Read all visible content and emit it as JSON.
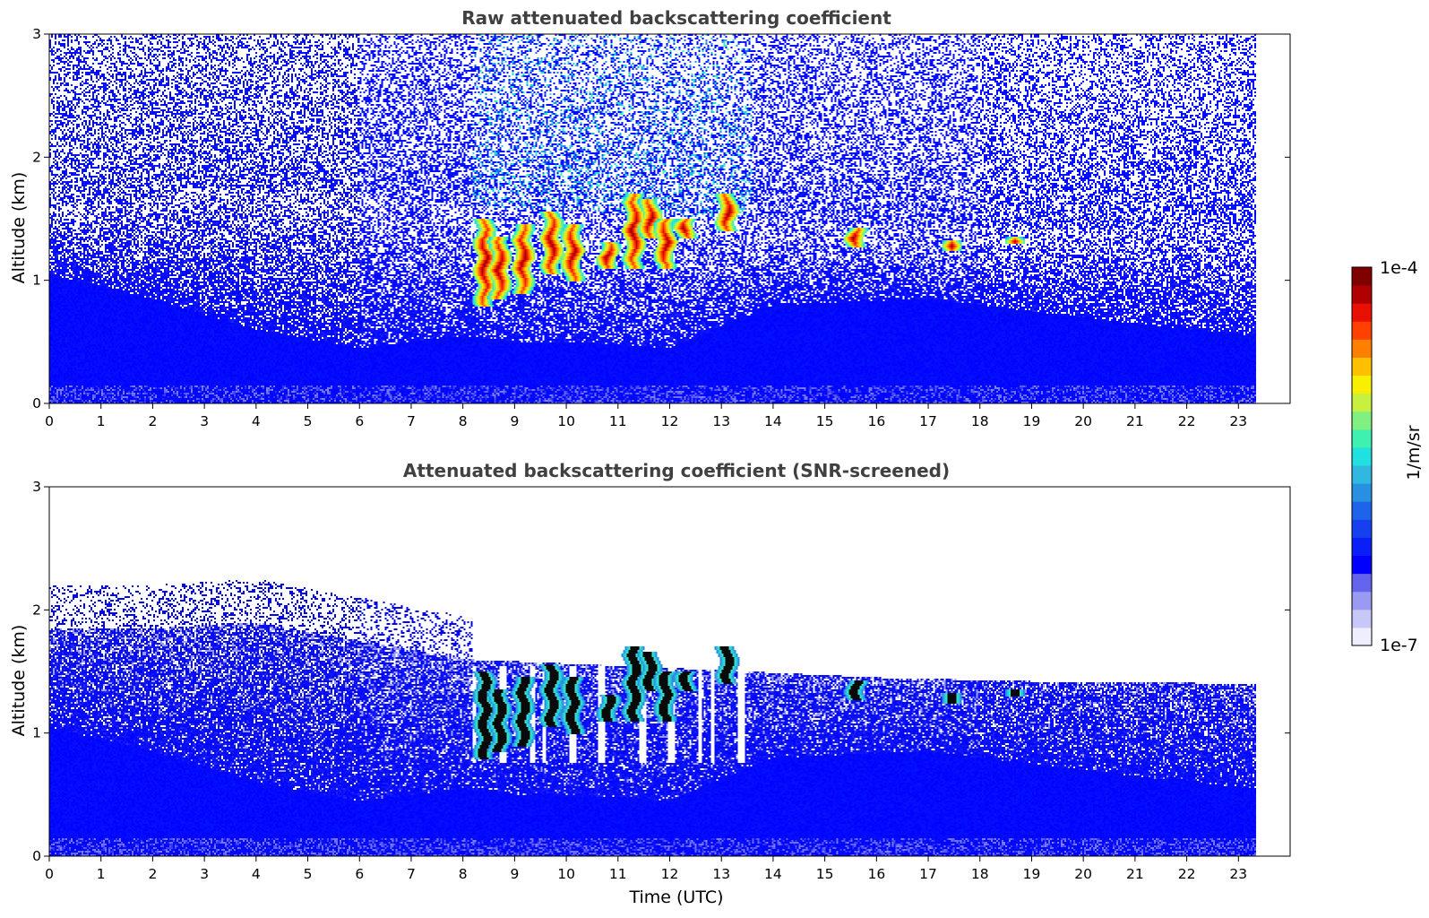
{
  "chart_data": [
    {
      "type": "heatmap",
      "title": "Raw attenuated backscattering coefficient",
      "xlabel": "",
      "ylabel": "Altitude (km)",
      "xlim": [
        0,
        24
      ],
      "ylim": [
        0,
        3
      ],
      "data_x_extent": [
        0,
        23.33
      ],
      "xticks": [
        "0",
        "1",
        "2",
        "3",
        "4",
        "5",
        "6",
        "7",
        "8",
        "9",
        "10",
        "11",
        "12",
        "13",
        "14",
        "15",
        "16",
        "17",
        "18",
        "19",
        "20",
        "21",
        "22",
        "23"
      ],
      "yticks": [
        "0",
        "1",
        "2",
        "3"
      ],
      "colormap": "jet (log scale)",
      "noise": "high",
      "boundary_layer_top_km": [
        [
          0,
          1.05
        ],
        [
          2,
          0.85
        ],
        [
          4,
          0.6
        ],
        [
          6,
          0.45
        ],
        [
          8,
          0.55
        ],
        [
          9,
          0.5
        ],
        [
          10,
          0.5
        ],
        [
          12,
          0.45
        ],
        [
          14,
          0.8
        ],
        [
          17,
          0.85
        ],
        [
          19,
          0.75
        ],
        [
          21,
          0.65
        ],
        [
          23.3,
          0.55
        ]
      ],
      "aerosol_layer_top_km": [
        [
          0,
          1.55
        ],
        [
          3,
          1.75
        ],
        [
          6,
          1.7
        ],
        [
          8,
          1.6
        ],
        [
          13.5,
          1.5
        ],
        [
          16,
          1.45
        ],
        [
          19,
          1.42
        ],
        [
          23.3,
          1.4
        ]
      ],
      "cloud_cells": [
        {
          "t": 8.4,
          "base_km": 0.8,
          "top_km": 1.5
        },
        {
          "t": 8.7,
          "base_km": 0.85,
          "top_km": 1.35
        },
        {
          "t": 9.15,
          "base_km": 0.9,
          "top_km": 1.45
        },
        {
          "t": 9.7,
          "base_km": 1.05,
          "top_km": 1.55
        },
        {
          "t": 10.1,
          "base_km": 1.0,
          "top_km": 1.45
        },
        {
          "t": 10.8,
          "base_km": 1.1,
          "top_km": 1.3
        },
        {
          "t": 11.3,
          "base_km": 1.1,
          "top_km": 1.7
        },
        {
          "t": 11.6,
          "base_km": 1.35,
          "top_km": 1.65
        },
        {
          "t": 11.9,
          "base_km": 1.1,
          "top_km": 1.5
        },
        {
          "t": 12.3,
          "base_km": 1.35,
          "top_km": 1.5
        },
        {
          "t": 13.1,
          "base_km": 1.4,
          "top_km": 1.7
        },
        {
          "t": 15.6,
          "base_km": 1.28,
          "top_km": 1.42
        },
        {
          "t": 17.4,
          "base_km": 1.25,
          "top_km": 1.32
        },
        {
          "t": 18.6,
          "base_km": 1.3,
          "top_km": 1.34
        }
      ]
    },
    {
      "type": "heatmap",
      "title": "Attenuated backscattering coefficient (SNR-screened)",
      "xlabel": "Time (UTC)",
      "ylabel": "Altitude (km)",
      "xlim": [
        0,
        24
      ],
      "ylim": [
        0,
        3
      ],
      "data_x_extent": [
        0,
        23.33
      ],
      "xticks": [
        "0",
        "1",
        "2",
        "3",
        "4",
        "5",
        "6",
        "7",
        "8",
        "9",
        "10",
        "11",
        "12",
        "13",
        "14",
        "15",
        "16",
        "17",
        "18",
        "19",
        "20",
        "21",
        "22",
        "23"
      ],
      "yticks": [
        "0",
        "1",
        "2",
        "3"
      ],
      "colormap": "jet (log scale)",
      "noise": "screened",
      "boundary_layer_top_km": [
        [
          0,
          1.05
        ],
        [
          2,
          0.85
        ],
        [
          4,
          0.6
        ],
        [
          6,
          0.45
        ],
        [
          8,
          0.55
        ],
        [
          9,
          0.5
        ],
        [
          10,
          0.5
        ],
        [
          12,
          0.45
        ],
        [
          14,
          0.8
        ],
        [
          17,
          0.85
        ],
        [
          19,
          0.75
        ],
        [
          21,
          0.65
        ],
        [
          23.3,
          0.55
        ]
      ],
      "aerosol_layer_top_km": [
        [
          0,
          1.85
        ],
        [
          2,
          1.85
        ],
        [
          4,
          1.9
        ],
        [
          6,
          1.75
        ],
        [
          8,
          1.6
        ],
        [
          13.5,
          1.5
        ],
        [
          16,
          1.45
        ],
        [
          19,
          1.42
        ],
        [
          23.3,
          1.4
        ]
      ],
      "cloud_cells": [
        {
          "t": 8.4,
          "base_km": 0.8,
          "top_km": 1.5
        },
        {
          "t": 8.7,
          "base_km": 0.85,
          "top_km": 1.35
        },
        {
          "t": 9.15,
          "base_km": 0.9,
          "top_km": 1.45
        },
        {
          "t": 9.7,
          "base_km": 1.05,
          "top_km": 1.55
        },
        {
          "t": 10.1,
          "base_km": 1.0,
          "top_km": 1.45
        },
        {
          "t": 10.8,
          "base_km": 1.1,
          "top_km": 1.3
        },
        {
          "t": 11.3,
          "base_km": 1.1,
          "top_km": 1.7
        },
        {
          "t": 11.6,
          "base_km": 1.35,
          "top_km": 1.65
        },
        {
          "t": 11.9,
          "base_km": 1.1,
          "top_km": 1.5
        },
        {
          "t": 12.3,
          "base_km": 1.35,
          "top_km": 1.5
        },
        {
          "t": 13.1,
          "base_km": 1.4,
          "top_km": 1.7
        },
        {
          "t": 15.6,
          "base_km": 1.28,
          "top_km": 1.42
        },
        {
          "t": 17.4,
          "base_km": 1.25,
          "top_km": 1.32
        },
        {
          "t": 18.6,
          "base_km": 1.3,
          "top_km": 1.34
        }
      ]
    }
  ],
  "colorbar": {
    "label": "1/m/sr",
    "max_label": "1e-4",
    "min_label": "1e-7",
    "colors": [
      "#eeeeff",
      "#c8c8f8",
      "#9a9af2",
      "#6464ee",
      "#0000ff",
      "#0a1ef8",
      "#1440f0",
      "#1e64ea",
      "#2890e0",
      "#30b8e0",
      "#20e0e0",
      "#40f0b0",
      "#80f080",
      "#c8f040",
      "#f8f000",
      "#ffc000",
      "#ff8000",
      "#ff4000",
      "#e81000",
      "#b00000",
      "#800000"
    ]
  }
}
